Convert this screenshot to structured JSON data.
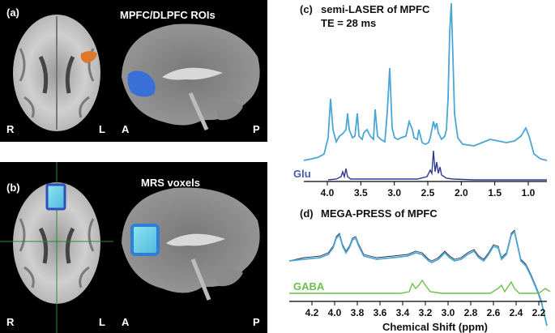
{
  "panel_a": {
    "label": "(a)",
    "title": "MPFC/DLPFC ROIs",
    "axial_left": "R",
    "axial_right": "L",
    "sagittal_left": "A",
    "sagittal_right": "P"
  },
  "panel_b": {
    "label": "(b)",
    "title": "MRS voxels",
    "axial_left": "R",
    "axial_right": "L",
    "sagittal_left": "A",
    "sagittal_right": "P"
  },
  "panel_c": {
    "label": "(c)",
    "title_line1": "semi-LASER of MPFC",
    "title_line2": "TE = 28 ms",
    "metabolite": "Glu",
    "xticks": [
      "4.0",
      "3.5",
      "3.0",
      "2.5",
      "2.0",
      "1.5",
      "1.0"
    ]
  },
  "panel_d": {
    "label": "(d)",
    "title": "MEGA-PRESS of MPFC",
    "metabolite": "GABA",
    "xticks": [
      "4.2",
      "4.0",
      "3.8",
      "3.6",
      "3.4",
      "3.2",
      "3.0",
      "2.8",
      "2.6",
      "2.4",
      "2.2"
    ],
    "xlabel": "Chemical Shift (ppm)"
  },
  "colors": {
    "spectrum_blue": "#4aa6d6",
    "glu_fit": "#2f3a8f",
    "glu_text": "#4a5aa8",
    "gaba_green": "#6cc04a",
    "roi_orange": "#e0782a",
    "roi_blue": "#3a6fd8",
    "voxel_cyan": "#6fd6e6"
  }
}
